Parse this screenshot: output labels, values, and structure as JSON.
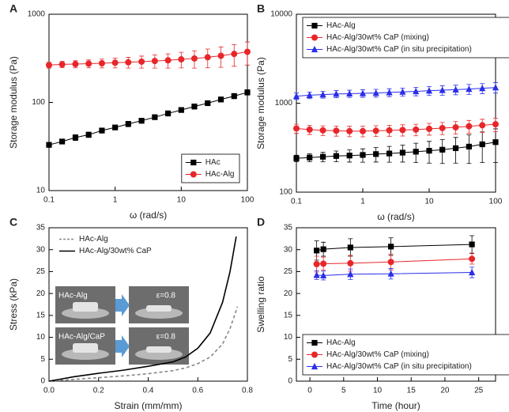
{
  "chart_data": [
    {
      "type": "line",
      "panel": "A",
      "xlabel": "ω (rad/s)",
      "ylabel": "Storage modulus (Pa)",
      "xscale": "log",
      "yscale": "log",
      "xlim": [
        0.1,
        100
      ],
      "ylim": [
        10,
        1000
      ],
      "xticks": [
        0.1,
        1,
        10,
        100
      ],
      "yticks": [
        10,
        100,
        1000
      ],
      "legend": "lower right",
      "legend_frame": true,
      "x": [
        0.1,
        0.158,
        0.251,
        0.398,
        0.631,
        1,
        1.58,
        2.51,
        3.98,
        6.31,
        10,
        15.8,
        25.1,
        39.8,
        63.1,
        100
      ],
      "series": [
        {
          "name": "HAc",
          "color": "#000000",
          "marker": "square",
          "values": [
            33,
            36,
            40,
            43,
            48,
            52,
            57,
            62,
            68,
            75,
            82,
            90,
            98,
            108,
            118,
            130
          ],
          "errors": [
            2,
            2,
            3,
            3,
            3,
            3,
            4,
            4,
            4,
            5,
            5,
            6,
            6,
            7,
            8,
            9
          ]
        },
        {
          "name": "HAc-Alg",
          "color": "#e8262a",
          "marker": "circle",
          "values": [
            265,
            270,
            272,
            275,
            278,
            282,
            285,
            290,
            295,
            300,
            308,
            315,
            325,
            338,
            355,
            375
          ],
          "errors": [
            20,
            22,
            25,
            28,
            32,
            36,
            40,
            45,
            50,
            55,
            62,
            70,
            78,
            88,
            98,
            110
          ]
        }
      ]
    },
    {
      "type": "line",
      "panel": "B",
      "xlabel": "ω (rad/s)",
      "ylabel": "Storage modulus (Pa)",
      "xscale": "log",
      "yscale": "log",
      "xlim": [
        0.1,
        100
      ],
      "ylim": [
        100,
        10000
      ],
      "xticks": [
        0.1,
        1,
        10,
        100
      ],
      "yticks": [
        100,
        1000,
        10000
      ],
      "legend": "upper left",
      "legend_frame": true,
      "x": [
        0.1,
        0.158,
        0.251,
        0.398,
        0.631,
        1,
        1.58,
        2.51,
        3.98,
        6.31,
        10,
        15.8,
        25.1,
        39.8,
        63.1,
        100
      ],
      "series": [
        {
          "name": "HAc-Alg",
          "color": "#000000",
          "marker": "square",
          "values": [
            240,
            245,
            250,
            255,
            258,
            262,
            268,
            272,
            278,
            285,
            292,
            300,
            312,
            325,
            345,
            365
          ],
          "errors": [
            20,
            25,
            30,
            35,
            40,
            45,
            50,
            55,
            60,
            70,
            80,
            90,
            100,
            115,
            130,
            150
          ]
        },
        {
          "name": "HAc-Alg/30wt% CaP (mixing)",
          "color": "#e8262a",
          "marker": "circle",
          "values": [
            520,
            505,
            495,
            490,
            485,
            485,
            490,
            495,
            500,
            505,
            515,
            525,
            535,
            550,
            565,
            580
          ],
          "errors": [
            60,
            60,
            62,
            64,
            65,
            66,
            68,
            70,
            72,
            75,
            78,
            82,
            86,
            90,
            95,
            100
          ]
        },
        {
          "name": "HAc-Alg/30wt% CaP (in situ precipitation)",
          "color": "#2a2ee8",
          "marker": "triangle",
          "values": [
            1200,
            1230,
            1250,
            1270,
            1280,
            1290,
            1300,
            1320,
            1340,
            1360,
            1380,
            1400,
            1420,
            1440,
            1470,
            1500
          ],
          "errors": [
            100,
            105,
            110,
            115,
            120,
            125,
            130,
            135,
            140,
            150,
            160,
            170,
            175,
            185,
            190,
            200
          ]
        }
      ]
    },
    {
      "type": "curve",
      "panel": "C",
      "xlabel": "Strain (mm/mm)",
      "ylabel": "Stress (kPa)",
      "xlim": [
        0,
        0.8
      ],
      "ylim": [
        0,
        35
      ],
      "xticks": [
        {
          "value": 0,
          "label": "0.0"
        },
        0.2,
        0.4,
        0.6,
        0.8
      ],
      "yticks": [
        0,
        5,
        10,
        15,
        20,
        25,
        30,
        35
      ],
      "legend": "upper left",
      "legend_frame": false,
      "annotations": [
        "HAc-Alg",
        "ε=0.8",
        "HAc-Alg/CaP",
        "ε=0.8"
      ],
      "series": [
        {
          "name": "HAc-Alg",
          "color": "#888888",
          "linestyle": "dashed",
          "x": [
            0,
            0.1,
            0.2,
            0.3,
            0.4,
            0.5,
            0.55,
            0.6,
            0.65,
            0.7,
            0.73,
            0.76
          ],
          "values": [
            0,
            0.4,
            0.8,
            1.2,
            1.7,
            2.4,
            3,
            4,
            5.5,
            8.5,
            12,
            17
          ]
        },
        {
          "name": "HAc-Alg/30wt% CaP",
          "color": "#000000",
          "linestyle": "solid",
          "x": [
            0,
            0.05,
            0.1,
            0.2,
            0.3,
            0.4,
            0.5,
            0.55,
            0.6,
            0.65,
            0.7,
            0.73,
            0.755
          ],
          "values": [
            0,
            0.5,
            1,
            1.8,
            2.5,
            3.4,
            4.4,
            5.5,
            7.5,
            11,
            18,
            25,
            33
          ]
        }
      ]
    },
    {
      "type": "line",
      "panel": "D",
      "xlabel": "Time (hour)",
      "ylabel": "Swelling ratio",
      "xlim": [
        -2,
        27.5
      ],
      "ylim": [
        0,
        35
      ],
      "xticks": [
        0,
        5,
        10,
        15,
        20,
        25
      ],
      "yticks": [
        0,
        5,
        10,
        15,
        20,
        25,
        30,
        35
      ],
      "legend": "lower left",
      "legend_frame": true,
      "x": [
        1,
        2,
        6,
        12,
        24
      ],
      "series": [
        {
          "name": "HAc-Alg",
          "color": "#000000",
          "marker": "square",
          "values": [
            29.8,
            30.1,
            30.5,
            30.7,
            31.2
          ],
          "errors": [
            2.2,
            1.6,
            2,
            2,
            2
          ]
        },
        {
          "name": "HAc-Alg/30wt% CaP (mixing)",
          "color": "#e8262a",
          "marker": "circle",
          "values": [
            26.7,
            26.8,
            26.9,
            27.2,
            27.9
          ],
          "errors": [
            1.8,
            1.5,
            1.8,
            1.8,
            1.2
          ]
        },
        {
          "name": "HAc-Alg/30wt% CaP (in situ precipitation)",
          "color": "#2a2ee8",
          "marker": "triangle",
          "values": [
            24.2,
            24.1,
            24.4,
            24.5,
            24.8
          ],
          "errors": [
            1,
            1,
            1.2,
            1.2,
            1.2
          ]
        }
      ]
    }
  ]
}
